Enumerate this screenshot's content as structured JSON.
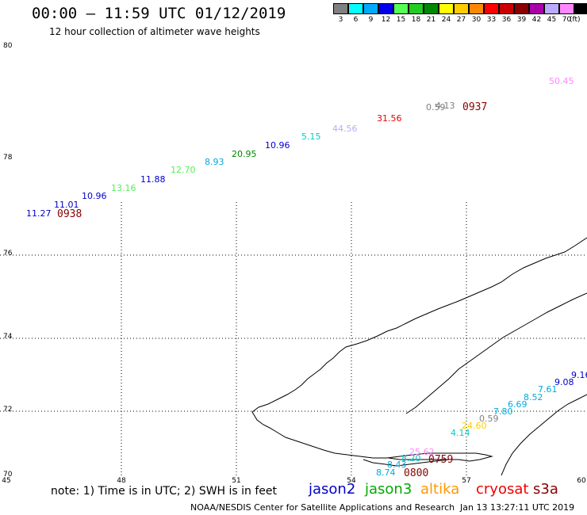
{
  "header": {
    "title": "00:00 – 11:59 UTC 01/12/2019",
    "subtitle": "12 hour collection of altimeter wave heights"
  },
  "scale": {
    "unit": "(ft)",
    "swatches": [
      {
        "label": "3",
        "color": "#808080"
      },
      {
        "label": "6",
        "color": "#00ffff"
      },
      {
        "label": "9",
        "color": "#00aaff"
      },
      {
        "label": "12",
        "color": "#0000ee"
      },
      {
        "label": "15",
        "color": "#55ff55"
      },
      {
        "label": "18",
        "color": "#22cc22"
      },
      {
        "label": "21",
        "color": "#008800"
      },
      {
        "label": "24",
        "color": "#ffff00"
      },
      {
        "label": "27",
        "color": "#ffcc00"
      },
      {
        "label": "30",
        "color": "#ff8800"
      },
      {
        "label": "33",
        "color": "#ff0000"
      },
      {
        "label": "36",
        "color": "#cc0000"
      },
      {
        "label": "39",
        "color": "#880000"
      },
      {
        "label": "42",
        "color": "#aa00aa"
      },
      {
        "label": "45",
        "color": "#bbaaff"
      },
      {
        "label": "70",
        "color": "#ff88ff"
      },
      {
        "label": "",
        "color": "#000000"
      }
    ]
  },
  "axes": {
    "lon_ticks": [
      "45",
      "48",
      "51",
      "54",
      "57",
      "60"
    ],
    "lat_ticks": [
      "70",
      "72",
      "74",
      "76",
      "78",
      "80"
    ]
  },
  "track_north": {
    "time": "0938",
    "time2": "0937",
    "readings": [
      {
        "value": "11.27",
        "color": "#0000cc"
      },
      {
        "value": "11.01",
        "color": "#0000cc"
      },
      {
        "value": "10.96",
        "color": "#0000cc"
      },
      {
        "value": "13.16",
        "color": "#55ee55"
      },
      {
        "value": "11.88",
        "color": "#0000cc"
      },
      {
        "value": "12.70",
        "color": "#55ee55"
      },
      {
        "value": "8.93",
        "color": "#00aadd"
      },
      {
        "value": "20.95",
        "color": "#008800"
      },
      {
        "value": "10.96",
        "color": "#0000cc"
      },
      {
        "value": "5.15",
        "color": "#00cccc"
      },
      {
        "value": "44.56",
        "color": "#bbaaff"
      },
      {
        "value": "31.56",
        "color": "#ee0000"
      },
      {
        "value": "0.59",
        "color": "#808080"
      },
      {
        "value": "4.13",
        "color": "#808080"
      },
      {
        "value": "50.45",
        "color": "#ff88ff"
      }
    ]
  },
  "track_south": {
    "time": "0800",
    "time2": "0759",
    "readings": [
      {
        "value": "8.74",
        "color": "#00aadd"
      },
      {
        "value": "8.43",
        "color": "#00aadd"
      },
      {
        "value": "8.20",
        "color": "#00cccc"
      },
      {
        "value": "25.62",
        "color": "#ff88ff"
      },
      {
        "value": "4.14",
        "color": "#00cccc"
      },
      {
        "value": "24.60",
        "color": "#ffcc00"
      },
      {
        "value": "0.59",
        "color": "#808080"
      },
      {
        "value": "7.80",
        "color": "#00aadd"
      },
      {
        "value": "6.69",
        "color": "#00aadd"
      },
      {
        "value": "8.52",
        "color": "#00aadd"
      },
      {
        "value": "7.61",
        "color": "#00aadd"
      },
      {
        "value": "9.08",
        "color": "#0000cc"
      },
      {
        "value": "9.16",
        "color": "#0000cc"
      }
    ]
  },
  "footer": {
    "note": "note: 1) Time is in UTC; 2) SWH is in feet",
    "satellites": [
      {
        "name": "jason2",
        "color": "#0000cc"
      },
      {
        "name": "jason3",
        "color": "#00aa00"
      },
      {
        "name": "altika",
        "color": "#ff9900"
      },
      {
        "name": "cryosat",
        "color": "#ee0000"
      },
      {
        "name": "s3a",
        "color": "#880000"
      }
    ],
    "credit": "NOAA/NESDIS Center for Satellite Applications and Research",
    "timestamp": "Jan 13 13:27:11 UTC 2019"
  },
  "colors": {
    "time_label": "#880000",
    "land_outline": "#000000"
  }
}
